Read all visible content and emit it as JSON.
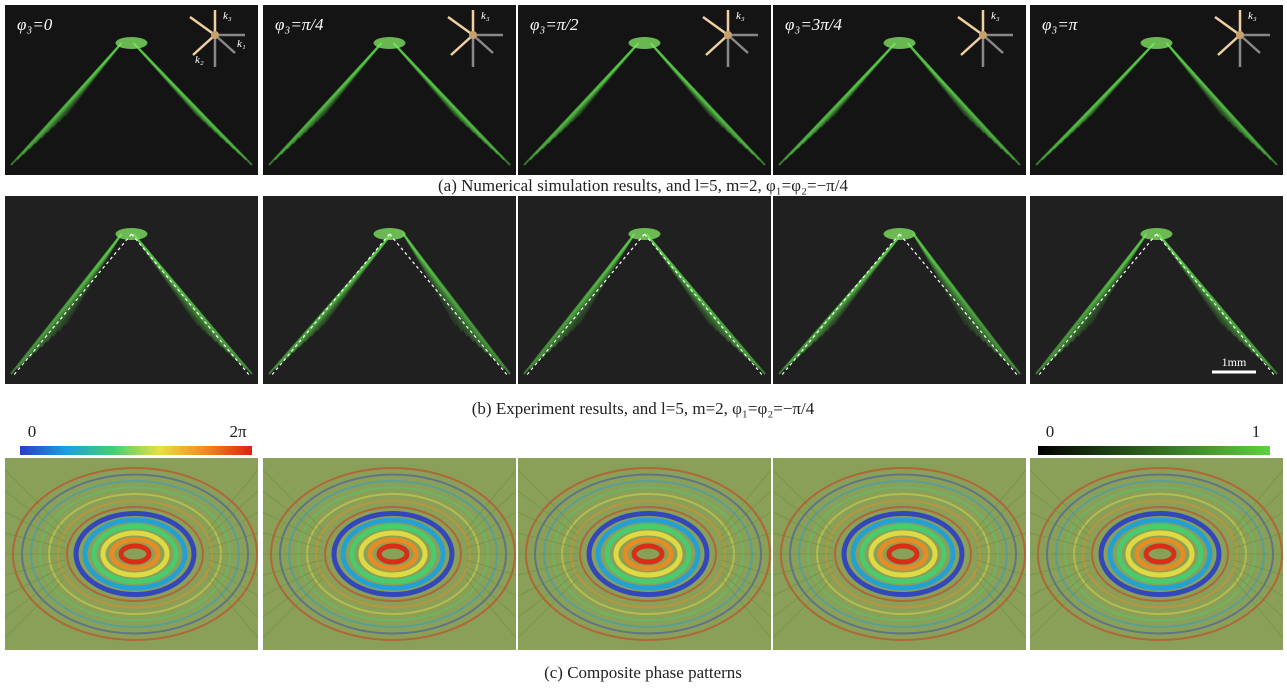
{
  "row_a": {
    "panels": [
      {
        "label": "φ₃=0",
        "arrows": [
          "k₃",
          "k₁",
          "k₂"
        ]
      },
      {
        "label": "φ₃=π/4",
        "arrows": [
          "k₃"
        ]
      },
      {
        "label": "φ₃=π/2",
        "arrows": [
          "k₃"
        ]
      },
      {
        "label": "φ₃=3π/4",
        "arrows": [
          "k₃"
        ]
      },
      {
        "label": "φ₃=π",
        "arrows": [
          "k₃"
        ]
      }
    ],
    "caption": "(a) Numerical simulation results, and l=5, m=2, φ₁=φ₂=−π/4"
  },
  "row_b": {
    "scale_bar": "1mm",
    "caption": "(b) Experiment results, and l=5, m=2, φ₁=φ₂=−π/4"
  },
  "row_c": {
    "phase_colorbar": {
      "min": "0",
      "max": "2π"
    },
    "intensity_colorbar": {
      "min": "0",
      "max": "1"
    },
    "caption": "(c) Composite phase patterns"
  }
}
